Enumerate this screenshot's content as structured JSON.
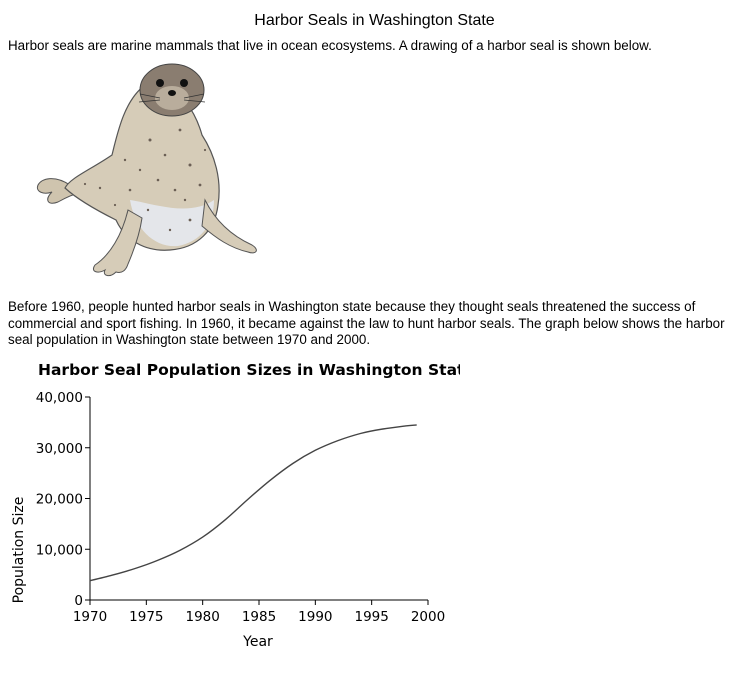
{
  "page": {
    "title": "Harbor Seals in Washington State",
    "intro": "Harbor seals are marine mammals that live in ocean ecosystems. A drawing of a harbor seal is shown below.",
    "body": "Before 1960, people hunted harbor seals in Washington state because they thought seals threatened the success of commercial and sport fishing. In 1960, it became against the law to hunt harbor seals. The graph below shows the harbor seal population in Washington state between 1970 and 2000."
  },
  "image": {
    "subject": "harbor-seal-drawing"
  },
  "colors": {
    "seal_body": "#d6ccb8",
    "seal_head": "#8a7d70",
    "seal_belly": "#e4e6ea",
    "line": "#444444"
  },
  "chart_data": {
    "type": "line",
    "title": "Harbor Seal Population Sizes in Washington State",
    "xlabel": "Year",
    "ylabel": "Population Size",
    "xlim": [
      1970,
      2000
    ],
    "ylim": [
      0,
      40000
    ],
    "xticks": [
      1970,
      1975,
      1980,
      1985,
      1990,
      1995,
      2000
    ],
    "yticks": [
      0,
      10000,
      20000,
      30000,
      40000
    ],
    "xtick_labels": [
      "1970",
      "1975",
      "1980",
      "1985",
      "1990",
      "1995",
      "2000"
    ],
    "ytick_labels": [
      "0",
      "10,000",
      "20,000",
      "30,000",
      "40,000"
    ],
    "grid": false,
    "series": [
      {
        "x": [
          1970,
          1972,
          1974,
          1976,
          1978,
          1980,
          1982,
          1984,
          1986,
          1988,
          1990,
          1992,
          1994,
          1996,
          1998,
          1999
        ],
        "values": [
          3800,
          4900,
          6200,
          7800,
          9800,
          12400,
          15800,
          19800,
          23600,
          26900,
          29500,
          31400,
          32800,
          33700,
          34300,
          34500
        ]
      }
    ]
  }
}
